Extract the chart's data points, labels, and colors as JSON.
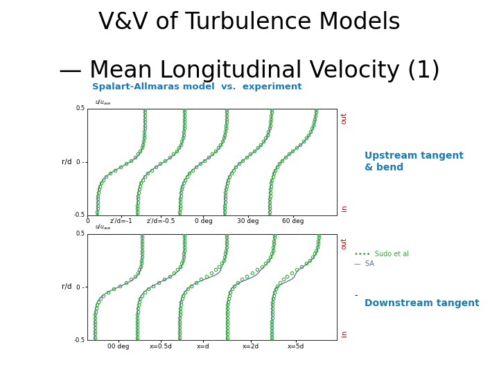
{
  "title_line1": "V&V of Turbulence Models",
  "title_line2": "— Mean Longitudinal Velocity (1)",
  "title_fontsize": 24,
  "title_color": "#000000",
  "subtitle": "Spalart-Allmaras model  vs.  experiment",
  "subtitle_color": "#1a7ab5",
  "subtitle_fontsize": 9.5,
  "label_upstream": "Upstream tangent\n& bend",
  "label_downstream": "Downstream tangent",
  "label_color": "#1a7ab5",
  "label_fontsize": 10,
  "out_color": "#cc0000",
  "in_color": "#cc0000",
  "line_color_SA": "#5566aa",
  "line_color_exp": "#33aa33",
  "top_xlabel_ticks": [
    "0",
    "z’/d=-1",
    "z’/d=-0.5",
    "0 deg",
    "30 deg",
    "60 deg"
  ],
  "bottom_xlabel_ticks": [
    "00 deg",
    "x=0.5d",
    "x=d",
    "x=2d",
    "x=5d"
  ],
  "ylabel": "r/d",
  "legend_exp": "Sudo et al",
  "legend_SA": "SA"
}
